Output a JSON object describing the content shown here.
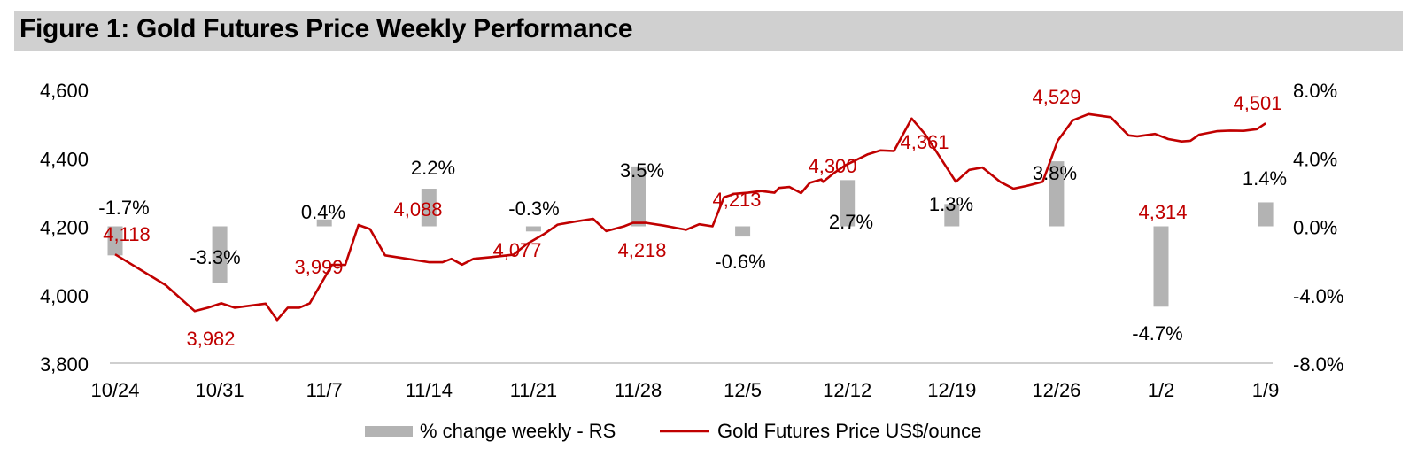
{
  "colors": {
    "bar": "#b3b3b3",
    "line": "#c00000",
    "price_label": "#c00000",
    "pct_label": "#000000",
    "title_bg": "#d0d0d0"
  },
  "chart_data": {
    "type": "bar+line",
    "title": "Figure 1: Gold Futures Price Weekly Performance",
    "x_tick_labels": [
      "10/24",
      "10/31",
      "11/7",
      "11/14",
      "11/21",
      "11/28",
      "12/5",
      "12/12",
      "12/19",
      "12/26",
      "1/2",
      "1/9"
    ],
    "left_axis": {
      "min": 3800,
      "max": 4600,
      "ticks": [
        3800,
        4000,
        4200,
        4400,
        4600
      ],
      "tick_labels": [
        "3,800",
        "4,000",
        "4,200",
        "4,400",
        "4,600"
      ]
    },
    "right_axis": {
      "min": -8.0,
      "max": 8.0,
      "ticks": [
        -8,
        -4,
        0,
        4,
        8
      ],
      "tick_labels": [
        "-8.0%",
        "-4.0%",
        "0.0%",
        "4.0%",
        "8.0%"
      ]
    },
    "series": [
      {
        "name": "% change weekly - RS",
        "type": "bar",
        "axis": "right",
        "values": [
          -1.7,
          -3.3,
          0.4,
          2.2,
          -0.3,
          3.5,
          -0.6,
          2.7,
          1.3,
          3.8,
          -4.7,
          1.4
        ],
        "labels": [
          "-1.7%",
          "-3.3%",
          "0.4%",
          "2.2%",
          "-0.3%",
          "3.5%",
          "-0.6%",
          "2.7%",
          "1.3%",
          "3.8%",
          "-4.7%",
          "1.4%"
        ]
      },
      {
        "name": "Gold Futures Price US$/ounce",
        "type": "line",
        "axis": "left",
        "points": [
          [
            0,
            4118
          ],
          [
            0.57,
            4028
          ],
          [
            0.9,
            3952
          ],
          [
            1.05,
            3962
          ],
          [
            1.2,
            3975
          ],
          [
            1.35,
            3962
          ],
          [
            1.7,
            3974
          ],
          [
            1.83,
            3926
          ],
          [
            1.95,
            3962
          ],
          [
            2.08,
            3962
          ],
          [
            2.2,
            3975
          ],
          [
            2.45,
            4087
          ],
          [
            2.6,
            4087
          ],
          [
            2.75,
            4204
          ],
          [
            2.88,
            4192
          ],
          [
            3.05,
            4115
          ],
          [
            3.3,
            4105
          ],
          [
            3.55,
            4095
          ],
          [
            3.7,
            4095
          ],
          [
            3.8,
            4105
          ],
          [
            3.92,
            4088
          ],
          [
            4.05,
            4105
          ],
          [
            4.25,
            4110
          ],
          [
            4.5,
            4117
          ],
          [
            4.65,
            4148
          ],
          [
            4.85,
            4178
          ],
          [
            5.0,
            4205
          ],
          [
            5.2,
            4214
          ],
          [
            5.4,
            4222
          ],
          [
            5.55,
            4186
          ],
          [
            5.75,
            4200
          ],
          [
            5.85,
            4210
          ],
          [
            6.0,
            4210
          ],
          [
            6.2,
            4202
          ],
          [
            6.45,
            4190
          ],
          [
            6.6,
            4206
          ],
          [
            6.75,
            4200
          ],
          [
            6.88,
            4285
          ],
          [
            7.0,
            4295
          ],
          [
            7.15,
            4298
          ],
          [
            7.3,
            4303
          ],
          [
            7.45,
            4298
          ],
          [
            7.5,
            4312
          ],
          [
            7.62,
            4315
          ],
          [
            7.75,
            4297
          ],
          [
            7.85,
            4327
          ],
          [
            7.98,
            4337
          ],
          [
            8.0,
            4330
          ],
          [
            8.12,
            4355
          ],
          [
            8.25,
            4378
          ],
          [
            8.5,
            4410
          ],
          [
            8.65,
            4422
          ],
          [
            8.8,
            4420
          ],
          [
            9.0,
            4515
          ],
          [
            9.15,
            4470
          ],
          [
            9.3,
            4410
          ],
          [
            9.5,
            4330
          ],
          [
            9.65,
            4365
          ],
          [
            9.8,
            4372
          ],
          [
            10.0,
            4330
          ],
          [
            10.15,
            4310
          ],
          [
            10.3,
            4318
          ],
          [
            10.48,
            4330
          ],
          [
            10.65,
            4450
          ],
          [
            10.82,
            4510
          ],
          [
            11.0,
            4528
          ],
          [
            11.25,
            4519
          ],
          [
            11.45,
            4466
          ],
          [
            11.55,
            4463
          ],
          [
            11.75,
            4470
          ],
          [
            11.9,
            4455
          ],
          [
            12.05,
            4448
          ],
          [
            12.15,
            4450
          ],
          [
            12.25,
            4468
          ],
          [
            12.45,
            4478
          ],
          [
            12.6,
            4480
          ],
          [
            12.75,
            4479
          ],
          [
            12.9,
            4484
          ],
          [
            13.0,
            4501
          ]
        ],
        "annotations": [
          {
            "x": 0.28,
            "value": 4118,
            "label": "4,118"
          },
          {
            "x": 1.13,
            "value": 3982,
            "label": "3,982"
          },
          {
            "x": 2.16,
            "value": 3999,
            "label": "3,999"
          },
          {
            "x": 2.75,
            "value": 4088,
            "label": "4,088"
          },
          {
            "x": 3.95,
            "value": 4077,
            "label": "4,077"
          },
          {
            "x": 4.95,
            "value": 4218,
            "label": "4,218"
          },
          {
            "x": 6.45,
            "value": 4213,
            "label": "4,213"
          },
          {
            "x": 7.38,
            "value": 4300,
            "label": "4,300"
          },
          {
            "x": 8.17,
            "value": 4361,
            "label": "4,361"
          },
          {
            "x": 9.27,
            "value": 4529,
            "label": "4,529"
          },
          {
            "x": 10.5,
            "value": 4314,
            "label": "4,314"
          },
          {
            "x": 11.6,
            "value": 4501,
            "label": "4,501"
          }
        ]
      }
    ],
    "legend": {
      "position": "bottom-center",
      "items": [
        "% change weekly - RS",
        "Gold Futures Price US$/ounce"
      ]
    }
  }
}
